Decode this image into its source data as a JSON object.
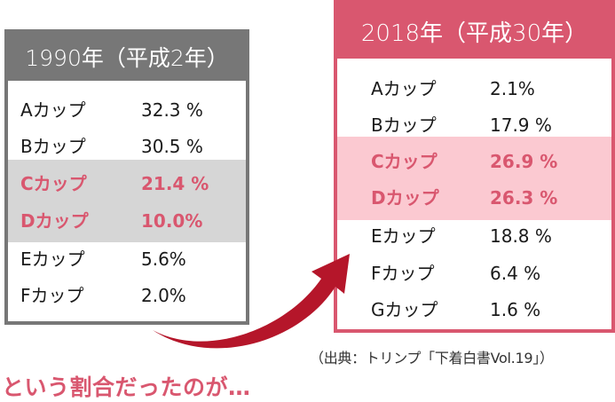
{
  "panel_1990": {
    "title": "1990年（平成2年）",
    "rows": [
      {
        "cup": "Aカップ",
        "pct": "32.3 %"
      },
      {
        "cup": "Bカップ",
        "pct": "30.5 %"
      },
      {
        "cup": "Cカップ",
        "pct": "21.4 %"
      },
      {
        "cup": "Dカップ",
        "pct": "10.0%"
      },
      {
        "cup": "Eカップ",
        "pct": "5.6%"
      },
      {
        "cup": "Fカップ",
        "pct": "2.0%"
      }
    ]
  },
  "panel_2018": {
    "title": "2018年（平成30年）",
    "rows": [
      {
        "cup": "Aカップ",
        "pct": "2.1%"
      },
      {
        "cup": "Bカップ",
        "pct": "17.9 %"
      },
      {
        "cup": "Cカップ",
        "pct": "26.9 %"
      },
      {
        "cup": "Dカップ",
        "pct": "26.3 %"
      },
      {
        "cup": "Eカップ",
        "pct": "18.8 %"
      },
      {
        "cup": "Fカップ",
        "pct": "6.4 %"
      },
      {
        "cup": "Gカップ",
        "pct": "1.6 %"
      }
    ]
  },
  "source": "（出典：トリンプ「下着白書Vol.19」）",
  "caption": "という割合だったのが…",
  "colors": {
    "accent": "#d9576f",
    "gray_header": "#777777",
    "gray_highlight": "#d6d6d6",
    "pink_highlight": "#fbc9d1",
    "arrow": "#b5162a"
  },
  "icons": [
    "curved-arrow-icon"
  ]
}
